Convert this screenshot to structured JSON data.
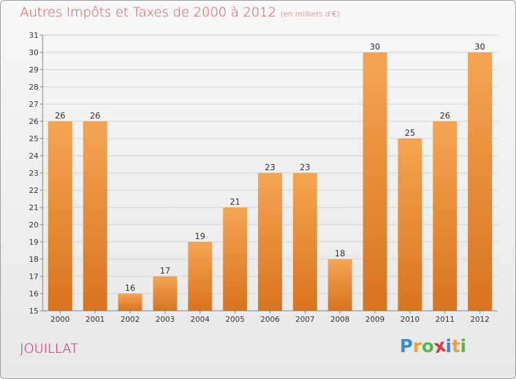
{
  "page": {
    "title": "Autres Impôts et Taxes de 2000 à 2012",
    "subtitle": "(en milliers d'€)",
    "place": "JOUILLAT",
    "logo_letters": [
      "P",
      "r",
      "o",
      "x",
      "i",
      "t",
      "i"
    ],
    "logo_colors": [
      "#3a8ad4",
      "#f0a030",
      "#52b848",
      "#d93a3a",
      "#3a8ad4",
      "#f0a030",
      "#52b848"
    ]
  },
  "colors": {
    "bar_top": "#f5a552",
    "bar_bottom": "#d9731f",
    "grid": "#d0d0d0",
    "axis": "#808080",
    "text": "#333333"
  },
  "chart_data": {
    "type": "bar",
    "title": "Autres Impôts et Taxes de 2000 à 2012",
    "subtitle": "(en milliers d'€)",
    "categories": [
      "2000",
      "2001",
      "2002",
      "2003",
      "2004",
      "2005",
      "2006",
      "2007",
      "2008",
      "2009",
      "2010",
      "2011",
      "2012"
    ],
    "values": [
      26,
      26,
      16,
      17,
      19,
      21,
      23,
      23,
      18,
      30,
      25,
      26,
      30
    ],
    "ylim": [
      15,
      31
    ],
    "yticks": [
      15,
      16,
      17,
      18,
      19,
      20,
      21,
      22,
      23,
      24,
      25,
      26,
      27,
      28,
      29,
      30,
      31
    ],
    "grid": true,
    "data_labels": true
  }
}
